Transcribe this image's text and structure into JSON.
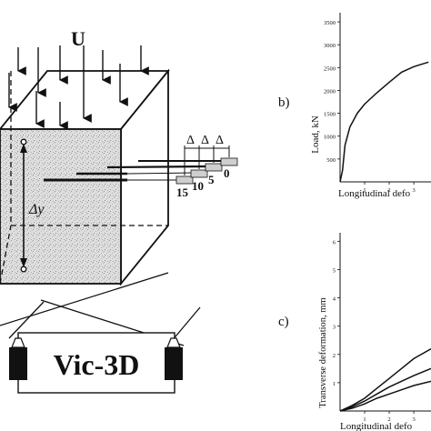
{
  "diagram": {
    "load_label": "U",
    "delta_symbol": "Δ",
    "dy_label": "Δy",
    "marker_labels": [
      "15",
      "10",
      "5",
      "0"
    ],
    "software_label": "Vic-3D"
  },
  "chart_data": [
    {
      "type": "line",
      "panel_label": "b)",
      "ylabel": "Load, kN",
      "xlabel": "Longitudinal defo",
      "xticks": [
        "1",
        "2",
        "3"
      ],
      "yticks": [
        "500",
        "1000",
        "1500",
        "2000",
        "2500",
        "3000",
        "3500"
      ],
      "xlim": [
        0,
        3.7
      ],
      "ylim": [
        0,
        3700
      ],
      "series": [
        {
          "x": [
            0,
            0.1,
            0.2,
            0.4,
            0.7,
            1.0,
            1.5,
            2.0,
            2.5,
            3.0,
            3.6
          ],
          "y": [
            0,
            250,
            800,
            1200,
            1500,
            1700,
            1950,
            2180,
            2400,
            2520,
            2620
          ]
        }
      ]
    },
    {
      "type": "line",
      "panel_label": "c)",
      "ylabel": "Transverse deformation, mm",
      "xlabel": "Longitudinal defo",
      "xticks": [
        "1",
        "2",
        "3"
      ],
      "yticks": [
        "1",
        "2",
        "3",
        "4",
        "5",
        "6"
      ],
      "xlim": [
        0,
        3.7
      ],
      "ylim": [
        0,
        6.3
      ],
      "series": [
        {
          "x": [
            0,
            0.5,
            1.0,
            1.5,
            2.0,
            2.5,
            3.0,
            3.7
          ],
          "y": [
            0,
            0.2,
            0.45,
            0.8,
            1.15,
            1.5,
            1.85,
            2.2
          ]
        },
        {
          "x": [
            0,
            0.5,
            1.0,
            1.5,
            2.0,
            2.5,
            3.0,
            3.7
          ],
          "y": [
            0,
            0.15,
            0.35,
            0.6,
            0.85,
            1.05,
            1.25,
            1.5
          ]
        },
        {
          "x": [
            0,
            0.5,
            1.0,
            1.5,
            2.0,
            2.5,
            3.0,
            3.7
          ],
          "y": [
            0,
            0.1,
            0.25,
            0.45,
            0.6,
            0.75,
            0.9,
            1.05
          ]
        }
      ]
    }
  ]
}
